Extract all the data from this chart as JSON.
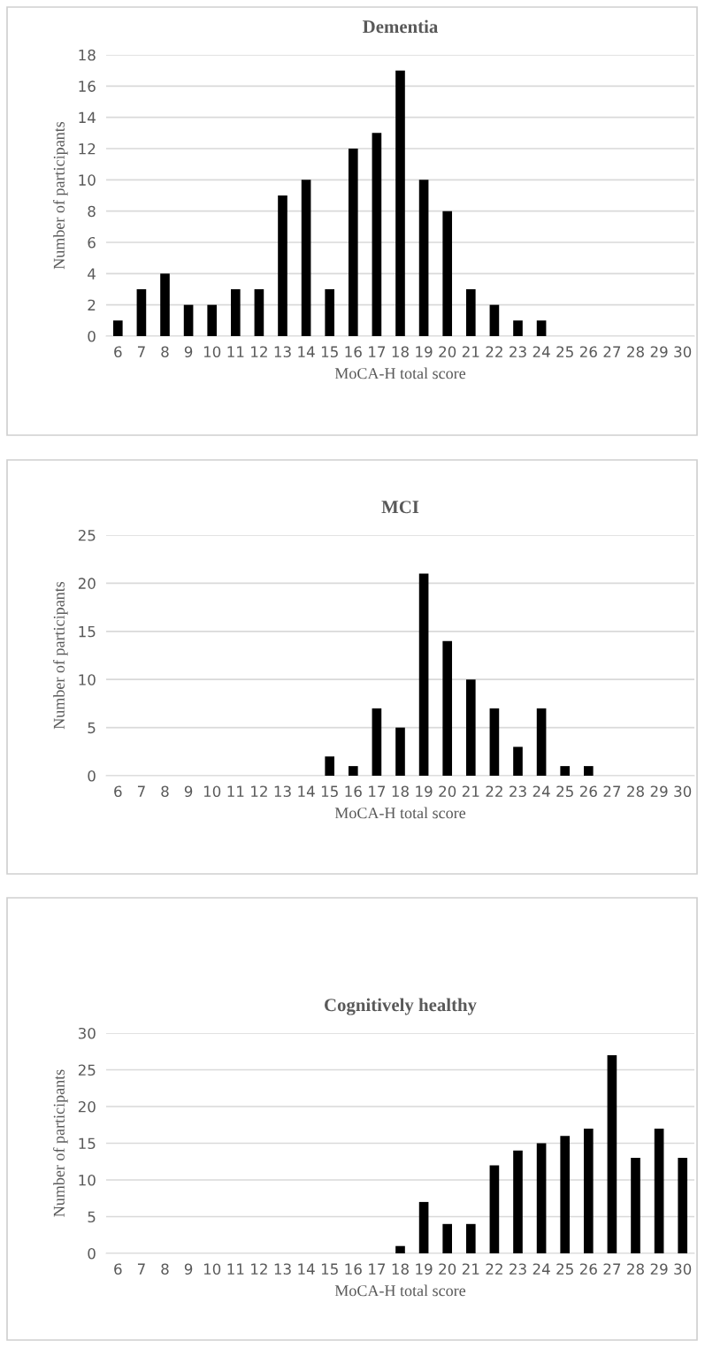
{
  "chart_data": [
    {
      "type": "bar",
      "title": "Dementia",
      "xlabel": "MoCA-H total score",
      "ylabel": "Number of participants",
      "categories": [
        "6",
        "7",
        "8",
        "9",
        "10",
        "11",
        "12",
        "13",
        "14",
        "15",
        "16",
        "17",
        "18",
        "19",
        "20",
        "21",
        "22",
        "23",
        "24",
        "25",
        "26",
        "27",
        "28",
        "29",
        "30"
      ],
      "series": [
        {
          "color": "#000000",
          "values": [
            1,
            3,
            4,
            2,
            2,
            3,
            3,
            9,
            10,
            3,
            12,
            13,
            17,
            10,
            8,
            3,
            2,
            1,
            1,
            0,
            0,
            0,
            0,
            0,
            0
          ]
        }
      ],
      "ylim": [
        0,
        18
      ],
      "yticks": [
        0,
        2,
        4,
        6,
        8,
        10,
        12,
        14,
        16,
        18
      ],
      "grid": "y",
      "legend": false
    },
    {
      "type": "bar",
      "title": "MCI",
      "xlabel": "MoCA-H total score",
      "ylabel": "Number of participants",
      "categories": [
        "6",
        "7",
        "8",
        "9",
        "10",
        "11",
        "12",
        "13",
        "14",
        "15",
        "16",
        "17",
        "18",
        "19",
        "20",
        "21",
        "22",
        "23",
        "24",
        "25",
        "26",
        "27",
        "28",
        "29",
        "30"
      ],
      "series": [
        {
          "color": "#000000",
          "values": [
            0,
            0,
            0,
            0,
            0,
            0,
            0,
            0,
            0,
            2,
            1,
            7,
            5,
            21,
            14,
            10,
            7,
            3,
            7,
            1,
            1,
            0,
            0,
            0,
            0
          ]
        }
      ],
      "ylim": [
        0,
        25
      ],
      "yticks": [
        0,
        5,
        10,
        15,
        20,
        25
      ],
      "grid": "y",
      "legend": false
    },
    {
      "type": "bar",
      "title": "Cognitively healthy",
      "xlabel": "MoCA-H total score",
      "ylabel": "Number of participants",
      "categories": [
        "6",
        "7",
        "8",
        "9",
        "10",
        "11",
        "12",
        "13",
        "14",
        "15",
        "16",
        "17",
        "18",
        "19",
        "20",
        "21",
        "22",
        "23",
        "24",
        "25",
        "26",
        "27",
        "28",
        "29",
        "30"
      ],
      "series": [
        {
          "color": "#000000",
          "values": [
            0,
            0,
            0,
            0,
            0,
            0,
            0,
            0,
            0,
            0,
            0,
            0,
            1,
            7,
            4,
            4,
            12,
            14,
            15,
            16,
            17,
            27,
            13,
            17,
            13
          ]
        }
      ],
      "ylim": [
        0,
        30
      ],
      "yticks": [
        0,
        5,
        10,
        15,
        20,
        25,
        30
      ],
      "grid": "y",
      "legend": false
    }
  ]
}
